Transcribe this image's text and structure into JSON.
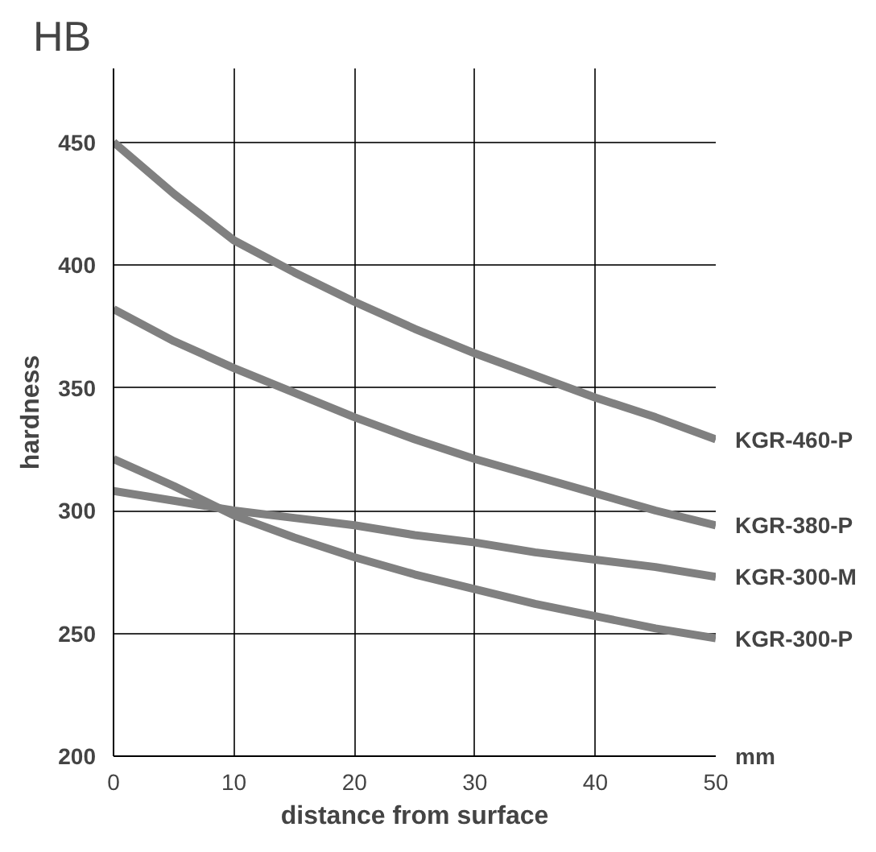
{
  "chart_data": {
    "type": "line",
    "xlabel": "distance from surface",
    "ylabel": "hardness",
    "annotations": [
      "HB",
      "mm"
    ],
    "x": [
      0,
      5,
      10,
      15,
      20,
      25,
      30,
      35,
      40,
      45,
      50
    ],
    "xlim": [
      0,
      50
    ],
    "xticks": [
      0,
      10,
      20,
      30,
      40,
      50
    ],
    "ylim": [
      200,
      480
    ],
    "yticks": [
      200,
      250,
      300,
      350,
      400,
      450
    ],
    "grid": true,
    "marker": "none",
    "line_style": "solid",
    "series": [
      {
        "name": "KGR-460-P",
        "color": "#808080",
        "values": [
          450,
          429,
          410,
          397,
          385,
          374,
          364,
          355,
          346,
          338,
          329
        ]
      },
      {
        "name": "KGR-380-P",
        "color": "#808080",
        "values": [
          382,
          369,
          358,
          348,
          338,
          329,
          321,
          314,
          307,
          300,
          294
        ]
      },
      {
        "name": "KGR-300-M",
        "color": "#808080",
        "values": [
          308,
          304,
          300,
          297,
          294,
          290,
          287,
          283,
          280,
          277,
          273
        ]
      },
      {
        "name": "KGR-300-P",
        "color": "#808080",
        "values": [
          321,
          310,
          298,
          289,
          281,
          274,
          268,
          262,
          257,
          252,
          248
        ]
      }
    ]
  }
}
